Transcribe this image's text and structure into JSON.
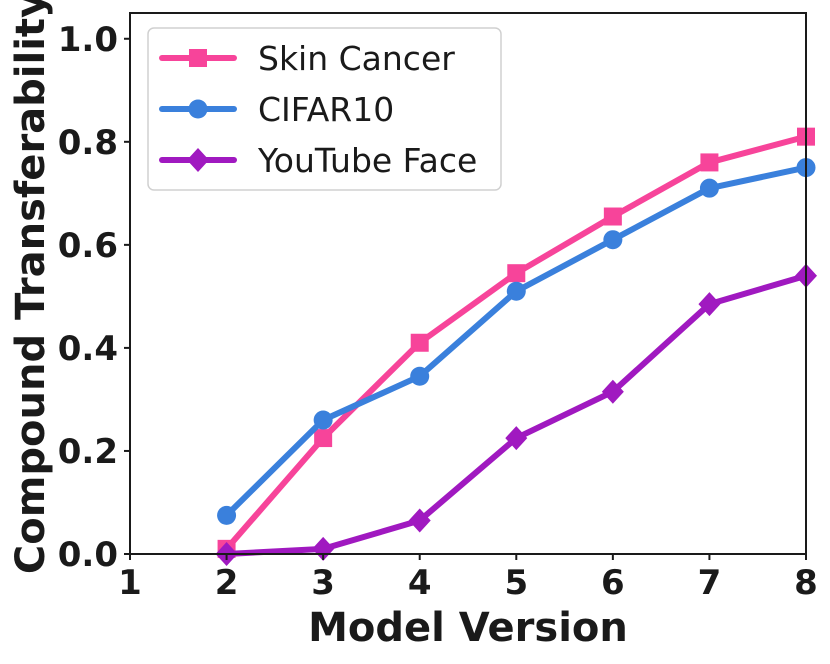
{
  "chart_data": {
    "type": "line",
    "title": "",
    "xlabel": "Model Version",
    "ylabel": "Compound Transferability",
    "xlim": [
      1,
      8
    ],
    "ylim": [
      0.0,
      1.05
    ],
    "x_ticks": [
      "1",
      "2",
      "3",
      "4",
      "5",
      "6",
      "7",
      "8"
    ],
    "y_ticks": [
      "0.0",
      "0.2",
      "0.4",
      "0.6",
      "0.8",
      "1.0"
    ],
    "grid": false,
    "legend_position": "top-left",
    "series": [
      {
        "name": "Skin Cancer",
        "color": "#f7449a",
        "marker": "square",
        "x": [
          2,
          3,
          4,
          5,
          6,
          7,
          8
        ],
        "values": [
          0.01,
          0.225,
          0.41,
          0.545,
          0.655,
          0.76,
          0.81
        ]
      },
      {
        "name": "CIFAR10",
        "color": "#3a80dc",
        "marker": "circle",
        "x": [
          2,
          3,
          4,
          5,
          6,
          7,
          8
        ],
        "values": [
          0.075,
          0.26,
          0.345,
          0.51,
          0.61,
          0.71,
          0.75
        ]
      },
      {
        "name": "YouTube Face",
        "color": "#a019c0",
        "marker": "diamond",
        "x": [
          2,
          3,
          4,
          5,
          6,
          7,
          8
        ],
        "values": [
          0.0,
          0.01,
          0.065,
          0.225,
          0.315,
          0.485,
          0.54
        ]
      }
    ]
  }
}
